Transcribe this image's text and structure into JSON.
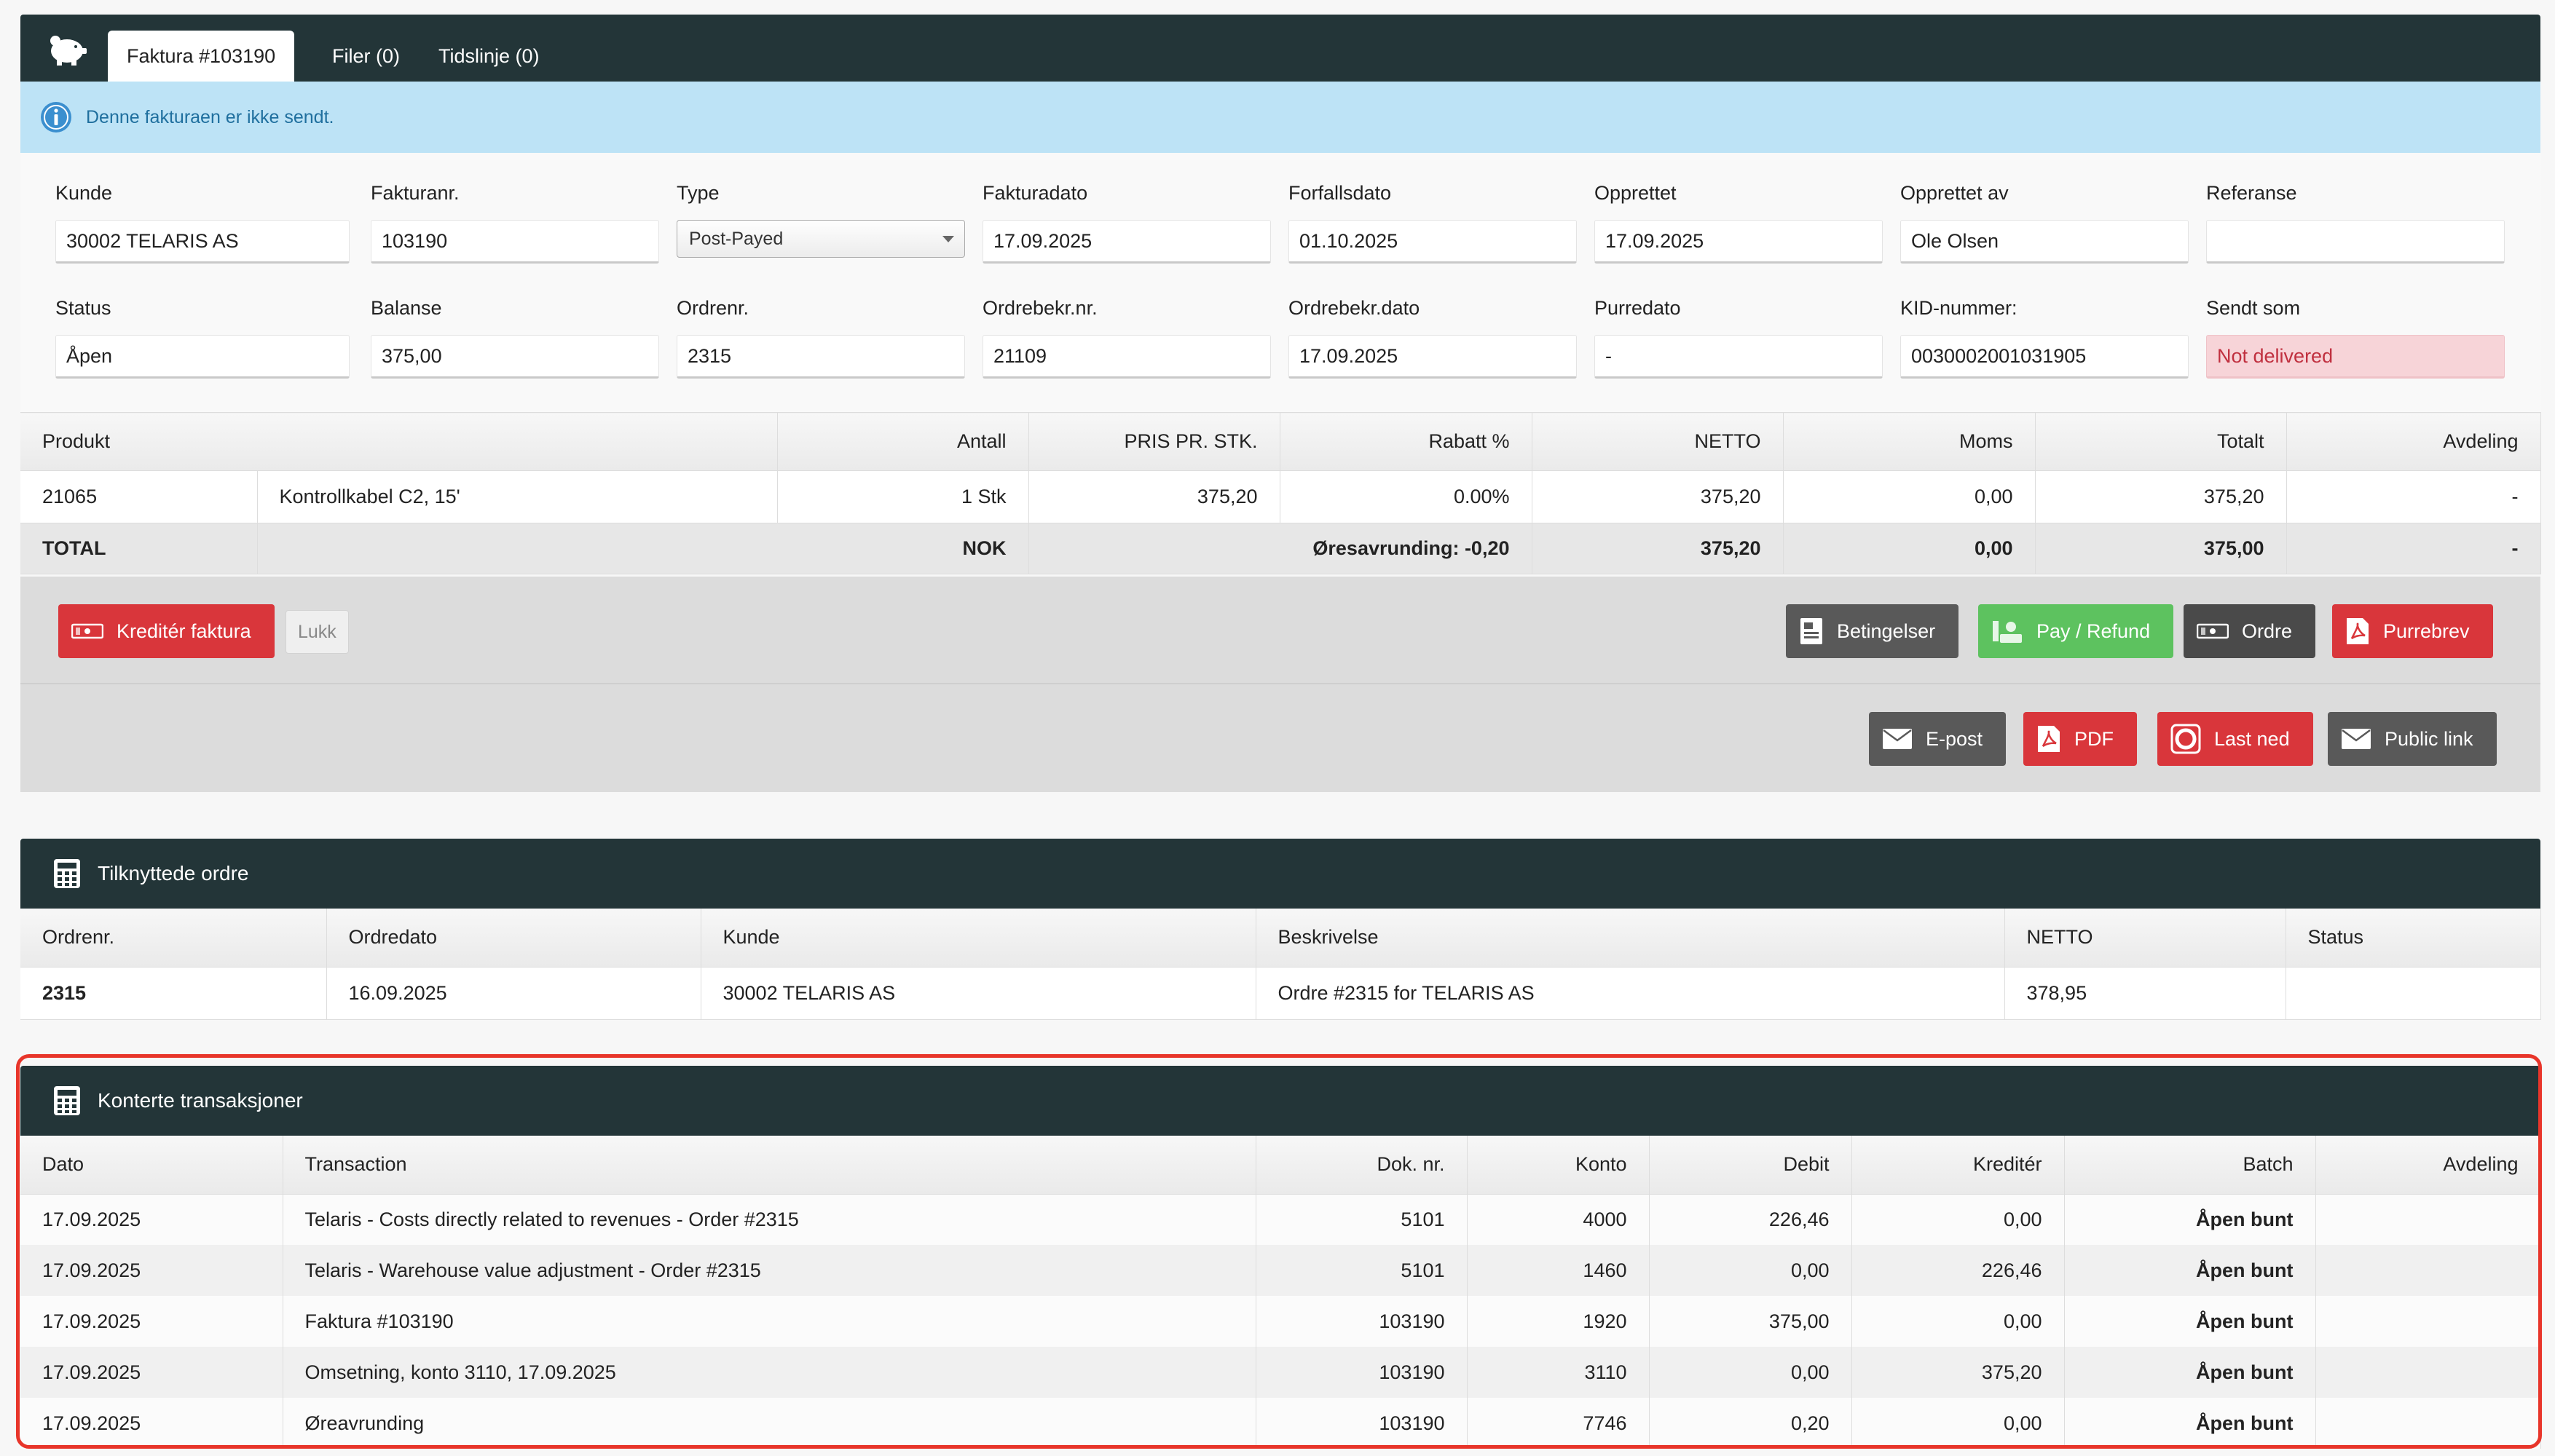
{
  "tabs": [
    {
      "label": "Faktura #103190",
      "active": true
    },
    {
      "label": "Filer (0)",
      "active": false
    },
    {
      "label": "Tidslinje (0)",
      "active": false
    }
  ],
  "info": {
    "text": "Denne fakturaen er ikke sendt."
  },
  "form": {
    "row1": [
      {
        "label": "Kunde",
        "value": "30002 TELARIS AS"
      },
      {
        "label": "Fakturanr.",
        "value": "103190"
      },
      {
        "label": "Type",
        "value": "Post-Payed"
      },
      {
        "label": "Fakturadato",
        "value": "17.09.2025"
      },
      {
        "label": "Forfallsdato",
        "value": "01.10.2025"
      },
      {
        "label": "Opprettet",
        "value": "17.09.2025"
      },
      {
        "label": "Opprettet av",
        "value": "Ole Olsen"
      },
      {
        "label": "Referanse",
        "value": ""
      }
    ],
    "row2": [
      {
        "label": "Status",
        "value": "Åpen"
      },
      {
        "label": "Balanse",
        "value": "375,00"
      },
      {
        "label": "Ordrenr.",
        "value": "2315"
      },
      {
        "label": "Ordrebekr.nr.",
        "value": "21109"
      },
      {
        "label": "Ordrebekr.dato",
        "value": "17.09.2025"
      },
      {
        "label": "Purredato",
        "value": "-"
      },
      {
        "label": "KID-nummer:",
        "value": "0030002001031905"
      },
      {
        "label": "Sendt som",
        "value": "Not delivered"
      }
    ]
  },
  "products": {
    "headers": [
      "Produkt",
      "Antall",
      "PRIS PR. STK.",
      "Rabatt %",
      "NETTO",
      "Moms",
      "Totalt",
      "Avdeling"
    ],
    "rows": [
      {
        "code": "21065",
        "name": "Kontrollkabel C2, 15'",
        "qty": "1 Stk",
        "price": "375,20",
        "discount": "0.00%",
        "net": "375,20",
        "vat": "0,00",
        "total": "375,20",
        "dept": "-"
      }
    ],
    "total": {
      "label": "TOTAL",
      "currency": "NOK",
      "rounding": "Øresavrunding: -0,20",
      "net": "375,20",
      "vat": "0,00",
      "total": "375,00",
      "dept": "-"
    }
  },
  "actions": {
    "credit": "Kreditér faktura",
    "close": "Lukk",
    "terms": "Betingelser",
    "pay": "Pay / Refund",
    "order": "Ordre",
    "reminder": "Purrebrev",
    "email": "E-post",
    "pdf": "PDF",
    "download": "Last ned",
    "public_link": "Public link"
  },
  "linked_orders": {
    "title": "Tilknyttede ordre",
    "headers": [
      "Ordrenr.",
      "Ordredato",
      "Kunde",
      "Beskrivelse",
      "NETTO",
      "Status"
    ],
    "rows": [
      {
        "order": "2315",
        "date": "16.09.2025",
        "customer": "30002 TELARIS AS",
        "description": "Ordre #2315 for TELARIS AS",
        "net": "378,95",
        "status": ""
      }
    ]
  },
  "transactions": {
    "title": "Konterte transaksjoner",
    "headers": [
      "Dato",
      "Transaction",
      "Dok. nr.",
      "Konto",
      "Debit",
      "Kreditér",
      "Batch",
      "Avdeling"
    ],
    "rows": [
      {
        "date": "17.09.2025",
        "text": "Telaris - Costs directly related to revenues - Order #2315",
        "doc": "5101",
        "account": "4000",
        "debit": "226,46",
        "credit": "0,00",
        "batch": "Åpen bunt",
        "dept": ""
      },
      {
        "date": "17.09.2025",
        "text": "Telaris - Warehouse value adjustment - Order #2315",
        "doc": "5101",
        "account": "1460",
        "debit": "0,00",
        "credit": "226,46",
        "batch": "Åpen bunt",
        "dept": ""
      },
      {
        "date": "17.09.2025",
        "text": "Faktura #103190",
        "doc": "103190",
        "account": "1920",
        "debit": "375,00",
        "credit": "0,00",
        "batch": "Åpen bunt",
        "dept": ""
      },
      {
        "date": "17.09.2025",
        "text": "Omsetning, konto 3110, 17.09.2025",
        "doc": "103190",
        "account": "3110",
        "debit": "0,00",
        "credit": "375,20",
        "batch": "Åpen bunt",
        "dept": ""
      },
      {
        "date": "17.09.2025",
        "text": "Øreavrunding",
        "doc": "103190",
        "account": "7746",
        "debit": "0,20",
        "credit": "0,00",
        "batch": "Åpen bunt",
        "dept": ""
      }
    ]
  },
  "colors": {
    "header_bg": "#233538",
    "info_bg": "#bde3f6",
    "danger": "#d9363b",
    "success": "#5dc25f",
    "neutral": "#595959",
    "highlight": "#e8352a"
  }
}
